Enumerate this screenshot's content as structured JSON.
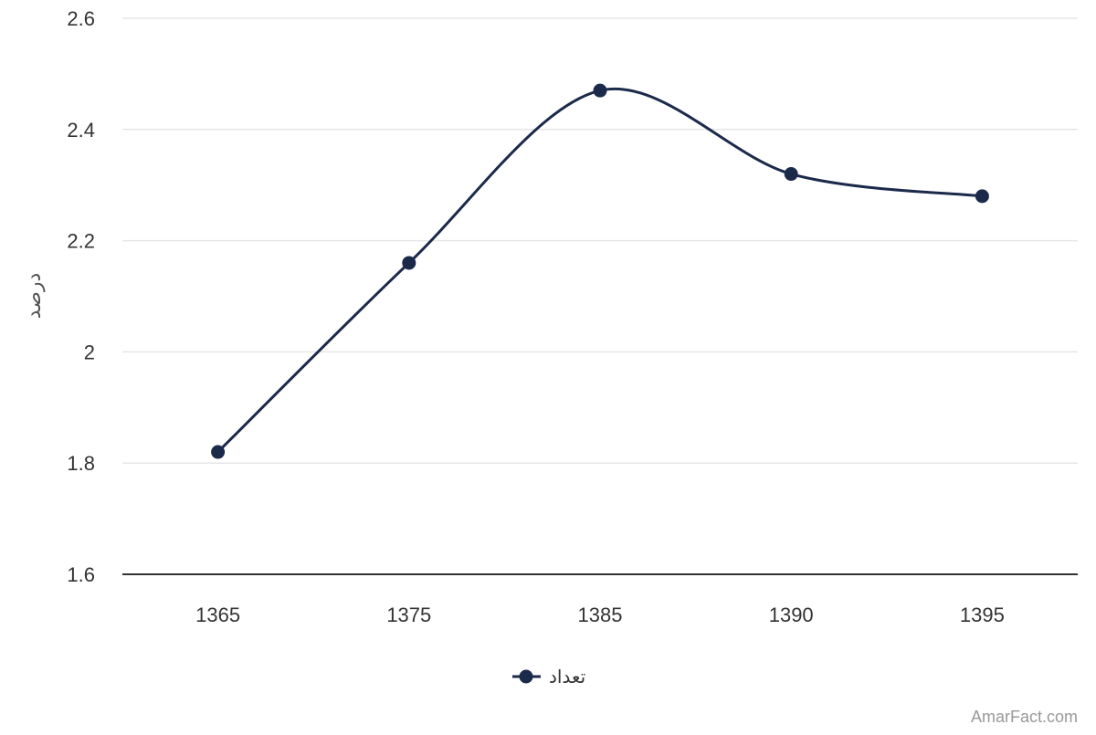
{
  "chart_data": {
    "type": "line",
    "categories": [
      "1365",
      "1375",
      "1385",
      "1390",
      "1395"
    ],
    "series": [
      {
        "name": "تعداد",
        "values": [
          1.82,
          2.16,
          2.47,
          2.32,
          2.28
        ],
        "color": "#1b2a4a"
      }
    ],
    "ylabel": "درصد",
    "xlabel": "",
    "ylim": [
      1.6,
      2.6
    ],
    "yticks": [
      "1.6",
      "1.8",
      "2",
      "2.2",
      "2.4",
      "2.6"
    ],
    "grid": true,
    "legend": "bottom-center",
    "colors": {
      "line": "#1b2a4a",
      "grid": "#e6e6e6",
      "axis": "#333333"
    }
  },
  "watermark": "AmarFact.com"
}
